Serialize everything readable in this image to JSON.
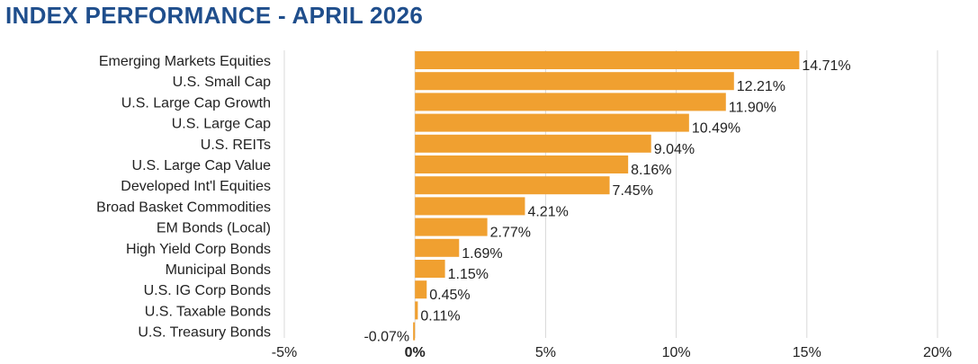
{
  "chart_data": {
    "type": "bar",
    "orientation": "horizontal",
    "title": "INDEX PERFORMANCE - APRIL 2026",
    "categories": [
      "Emerging Markets Equities",
      "U.S. Small Cap",
      "U.S. Large Cap Growth",
      "U.S. Large Cap",
      "U.S. REITs",
      "U.S. Large Cap Value",
      "Developed Int'l Equities",
      "Broad Basket Commodities",
      "EM Bonds (Local)",
      "High Yield Corp Bonds",
      "Municipal Bonds",
      "U.S. IG Corp Bonds",
      "U.S. Taxable Bonds",
      "U.S. Treasury Bonds"
    ],
    "values": [
      14.71,
      12.21,
      11.9,
      10.49,
      9.04,
      8.16,
      7.45,
      4.21,
      2.77,
      1.69,
      1.15,
      0.45,
      0.11,
      -0.07
    ],
    "value_labels": [
      "14.71%",
      "12.21%",
      "11.90%",
      "10.49%",
      "9.04%",
      "8.16%",
      "7.45%",
      "4.21%",
      "2.77%",
      "1.69%",
      "1.15%",
      "0.45%",
      "0.11%",
      "-0.07%"
    ],
    "xlim": [
      -5,
      20
    ],
    "xticks": [
      -5,
      0,
      5,
      10,
      15,
      20
    ],
    "xtick_labels": [
      "-5%",
      "0%",
      "5%",
      "10%",
      "15%",
      "20%"
    ],
    "grid": true,
    "legend": "none",
    "bar_color": "#f0a030",
    "title_color": "#1f4e8c",
    "grid_color": "#d9d9d9"
  }
}
